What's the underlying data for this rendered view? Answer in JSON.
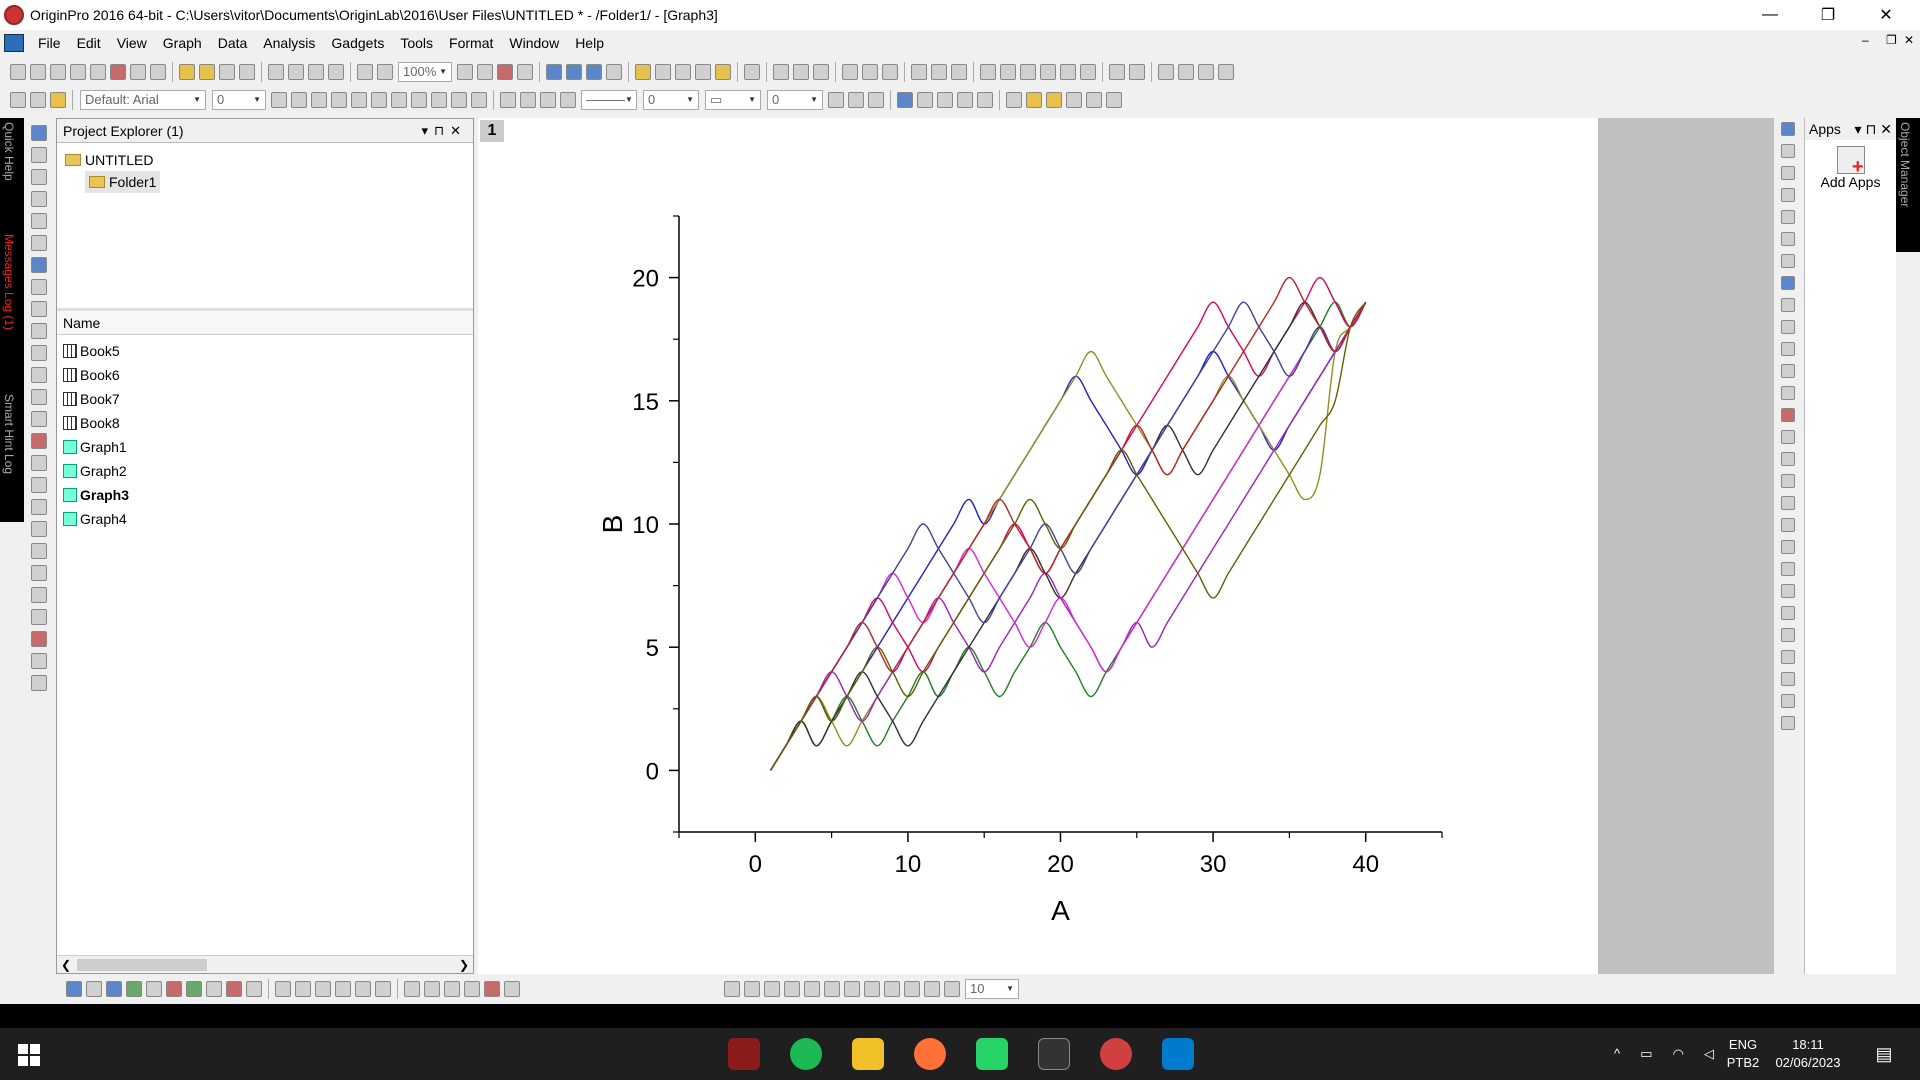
{
  "window": {
    "title": "OriginPro 2016 64-bit - C:\\Users\\vitor\\Documents\\OriginLab\\2016\\User Files\\UNTITLED * - /Folder1/ - [Graph3]",
    "minimize": "—",
    "maximize": "❐",
    "close": "✕"
  },
  "menu": [
    "File",
    "Edit",
    "View",
    "Graph",
    "Data",
    "Analysis",
    "Gadgets",
    "Tools",
    "Format",
    "Window",
    "Help"
  ],
  "mdi": {
    "min": "‒",
    "restore": "❐",
    "close": "✕"
  },
  "toolbar": {
    "zoom": "100%",
    "font": "Default: Arial",
    "font_size": "0",
    "line_width": "0",
    "border_width": "0",
    "bottom_size": "10"
  },
  "left_tabs": {
    "quick_help": "Quick Help",
    "messages": "Messages Log (1)",
    "smart_hint": "Smart Hint Log"
  },
  "explorer": {
    "title": "Project Explorer (1)",
    "root": "UNTITLED",
    "folder": "Folder1",
    "column": "Name",
    "items": [
      {
        "name": "Book5",
        "type": "book"
      },
      {
        "name": "Book6",
        "type": "book"
      },
      {
        "name": "Book7",
        "type": "book"
      },
      {
        "name": "Book8",
        "type": "book"
      },
      {
        "name": "Graph1",
        "type": "graph"
      },
      {
        "name": "Graph2",
        "type": "graph"
      },
      {
        "name": "Graph3",
        "type": "graph",
        "active": true
      },
      {
        "name": "Graph4",
        "type": "graph"
      }
    ]
  },
  "graph_window": {
    "page_number": "1"
  },
  "apps_panel": {
    "title": "Apps",
    "add_apps": "Add Apps"
  },
  "right_tab": {
    "object_manager": "Object Manager"
  },
  "taskbar": {
    "lang": "ENG",
    "layout": "PTB2",
    "time": "18:11",
    "date": "02/06/2023"
  },
  "chart_data": {
    "type": "line",
    "xlabel": "A",
    "ylabel": "B",
    "xlim": [
      -5,
      45
    ],
    "ylim": [
      -2.5,
      22.5
    ],
    "xticks": [
      0,
      10,
      20,
      30,
      40
    ],
    "yticks": [
      0,
      5,
      10,
      15,
      20
    ],
    "series": [
      {
        "color": "#2020d0",
        "x": [
          1,
          2,
          3,
          4,
          5,
          6,
          7,
          8,
          9,
          10,
          11,
          12,
          13,
          14,
          15,
          16,
          17,
          18,
          19,
          20,
          21,
          22,
          23,
          24,
          25,
          26,
          27,
          28,
          29,
          30,
          31,
          32,
          33,
          34,
          35,
          36,
          37,
          38,
          39,
          40
        ],
        "y": [
          0,
          1,
          2,
          3,
          2,
          3,
          4,
          5,
          6,
          7,
          8,
          9,
          10,
          11,
          10,
          11,
          12,
          13,
          14,
          15,
          16,
          15,
          14,
          13,
          12,
          13,
          14,
          15,
          16,
          17,
          16,
          15,
          14,
          13,
          14,
          15,
          16,
          17,
          18,
          19
        ]
      },
      {
        "color": "#208020",
        "x": [
          1,
          2,
          3,
          4,
          5,
          6,
          7,
          8,
          9,
          10,
          11,
          12,
          13,
          14,
          15,
          16,
          17,
          18,
          19,
          20,
          21,
          22,
          23,
          24,
          25,
          26,
          27,
          28,
          29,
          30,
          31,
          32,
          33,
          34,
          35,
          36,
          37,
          38,
          39,
          40
        ],
        "y": [
          0,
          1,
          2,
          1,
          2,
          3,
          2,
          1,
          2,
          3,
          4,
          3,
          4,
          5,
          4,
          3,
          4,
          5,
          6,
          5,
          4,
          3,
          4,
          5,
          6,
          7,
          8,
          9,
          10,
          11,
          12,
          13,
          14,
          15,
          16,
          17,
          18,
          19,
          18,
          19
        ]
      },
      {
        "color": "#e00060",
        "x": [
          1,
          2,
          3,
          4,
          5,
          6,
          7,
          8,
          9,
          10,
          11,
          12,
          13,
          14,
          15,
          16,
          17,
          18,
          19,
          20,
          21,
          22,
          23,
          24,
          25,
          26,
          27,
          28,
          29,
          30,
          31,
          32,
          33,
          34,
          35,
          36,
          37,
          38,
          39,
          40
        ],
        "y": [
          0,
          1,
          2,
          3,
          4,
          5,
          6,
          7,
          6,
          5,
          4,
          5,
          6,
          7,
          8,
          9,
          10,
          9,
          8,
          9,
          10,
          11,
          12,
          13,
          14,
          15,
          16,
          17,
          18,
          19,
          18,
          17,
          16,
          17,
          18,
          19,
          20,
          19,
          18,
          19
        ]
      },
      {
        "color": "#909020",
        "x": [
          1,
          2,
          3,
          4,
          5,
          6,
          7,
          8,
          9,
          10,
          11,
          12,
          13,
          14,
          15,
          16,
          17,
          18,
          19,
          20,
          21,
          22,
          23,
          24,
          25,
          26,
          27,
          28,
          29,
          30,
          31,
          32,
          33,
          34,
          35,
          36,
          37,
          38,
          39,
          40
        ],
        "y": [
          0,
          1,
          2,
          3,
          2,
          1,
          2,
          3,
          4,
          5,
          6,
          7,
          8,
          9,
          10,
          11,
          12,
          13,
          14,
          15,
          16,
          17,
          16,
          15,
          14,
          13,
          12,
          13,
          14,
          15,
          16,
          15,
          14,
          13,
          12,
          11,
          12,
          17,
          18,
          19
        ]
      },
      {
        "color": "#a020c0",
        "x": [
          1,
          2,
          3,
          4,
          5,
          6,
          7,
          8,
          9,
          10,
          11,
          12,
          13,
          14,
          15,
          16,
          17,
          18,
          19,
          20,
          21,
          22,
          23,
          24,
          25,
          26,
          27,
          28,
          29,
          30,
          31,
          32,
          33,
          34,
          35,
          36,
          37,
          38,
          39,
          40
        ],
        "y": [
          0,
          1,
          2,
          3,
          4,
          3,
          2,
          3,
          4,
          5,
          6,
          7,
          6,
          5,
          4,
          5,
          6,
          7,
          8,
          7,
          6,
          5,
          4,
          5,
          6,
          5,
          6,
          7,
          8,
          9,
          10,
          11,
          12,
          13,
          14,
          15,
          16,
          17,
          18,
          19
        ]
      },
      {
        "color": "#303030",
        "x": [
          1,
          2,
          3,
          4,
          5,
          6,
          7,
          8,
          9,
          10,
          11,
          12,
          13,
          14,
          15,
          16,
          17,
          18,
          19,
          20,
          21,
          22,
          23,
          24,
          25,
          26,
          27,
          28,
          29,
          30,
          31,
          32,
          33,
          34,
          35,
          36,
          37,
          38,
          39,
          40
        ],
        "y": [
          0,
          1,
          2,
          1,
          2,
          3,
          4,
          3,
          2,
          1,
          2,
          3,
          4,
          5,
          6,
          7,
          8,
          9,
          8,
          7,
          8,
          9,
          10,
          11,
          12,
          13,
          14,
          13,
          12,
          13,
          14,
          15,
          16,
          17,
          18,
          19,
          18,
          17,
          18,
          19
        ]
      },
      {
        "color": "#e020e0",
        "x": [
          1,
          2,
          3,
          4,
          5,
          6,
          7,
          8,
          9,
          10,
          11,
          12,
          13,
          14,
          15,
          16,
          17,
          18,
          19,
          20,
          21,
          22,
          23,
          24,
          25,
          26,
          27,
          28,
          29,
          30,
          31,
          32,
          33,
          34,
          35,
          36,
          37,
          38,
          39,
          40
        ],
        "y": [
          0,
          1,
          2,
          3,
          4,
          5,
          6,
          7,
          8,
          7,
          6,
          7,
          8,
          9,
          8,
          7,
          6,
          5,
          6,
          7,
          6,
          5,
          4,
          5,
          6,
          7,
          8,
          9,
          10,
          11,
          12,
          13,
          14,
          15,
          16,
          17,
          18,
          17,
          18,
          19
        ]
      },
      {
        "color": "#4040a0",
        "x": [
          1,
          2,
          3,
          4,
          5,
          6,
          7,
          8,
          9,
          10,
          11,
          12,
          13,
          14,
          15,
          16,
          17,
          18,
          19,
          20,
          21,
          22,
          23,
          24,
          25,
          26,
          27,
          28,
          29,
          30,
          31,
          32,
          33,
          34,
          35,
          36,
          37,
          38,
          39,
          40
        ],
        "y": [
          0,
          1,
          2,
          3,
          4,
          5,
          6,
          7,
          8,
          9,
          10,
          9,
          8,
          7,
          6,
          7,
          8,
          9,
          10,
          9,
          8,
          9,
          10,
          11,
          12,
          13,
          14,
          15,
          16,
          17,
          18,
          19,
          18,
          17,
          16,
          17,
          18,
          17,
          18,
          19
        ]
      },
      {
        "color": "#c02020",
        "x": [
          1,
          2,
          3,
          4,
          5,
          6,
          7,
          8,
          9,
          10,
          11,
          12,
          13,
          14,
          15,
          16,
          17,
          18,
          19,
          20,
          21,
          22,
          23,
          24,
          25,
          26,
          27,
          28,
          29,
          30,
          31,
          32,
          33,
          34,
          35,
          36,
          37,
          38,
          39,
          40
        ],
        "y": [
          0,
          1,
          2,
          3,
          4,
          5,
          6,
          5,
          4,
          5,
          6,
          7,
          8,
          9,
          10,
          11,
          10,
          9,
          8,
          9,
          10,
          11,
          12,
          13,
          14,
          13,
          12,
          13,
          14,
          15,
          16,
          17,
          18,
          19,
          20,
          19,
          18,
          17,
          18,
          19
        ]
      },
      {
        "color": "#606000",
        "x": [
          1,
          2,
          3,
          4,
          5,
          6,
          7,
          8,
          9,
          10,
          11,
          12,
          13,
          14,
          15,
          16,
          17,
          18,
          19,
          20,
          21,
          22,
          23,
          24,
          25,
          26,
          27,
          28,
          29,
          30,
          31,
          32,
          33,
          34,
          35,
          36,
          37,
          38,
          39,
          40
        ],
        "y": [
          0,
          1,
          2,
          3,
          2,
          3,
          4,
          5,
          4,
          3,
          4,
          5,
          6,
          7,
          8,
          9,
          10,
          11,
          10,
          9,
          10,
          11,
          12,
          13,
          12,
          11,
          10,
          9,
          8,
          7,
          8,
          9,
          10,
          11,
          12,
          13,
          14,
          15,
          18,
          19
        ]
      }
    ]
  }
}
